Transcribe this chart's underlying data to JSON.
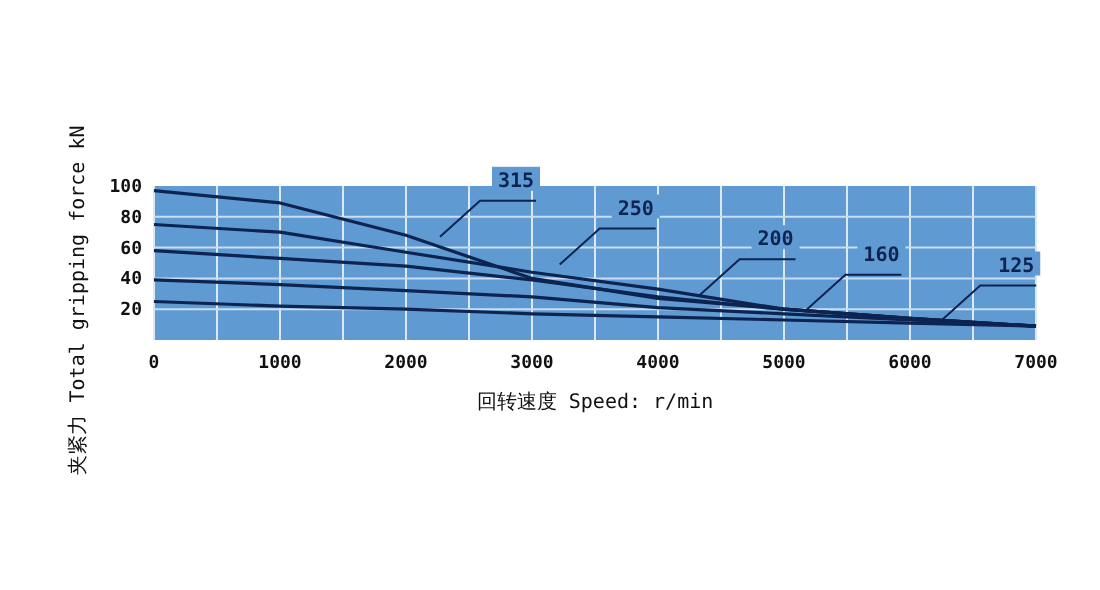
{
  "chart_data": {
    "type": "line",
    "xlabel": "回转速度    Speed: r/min",
    "ylabel": "夹紧力 Total gripping force kN",
    "xlim": [
      0,
      7000
    ],
    "ylim": [
      0,
      100
    ],
    "xticks": [
      0,
      {
        "value": 500,
        "label": null
      },
      1000,
      {
        "value": 1500,
        "label": null
      },
      2000,
      {
        "value": 2500,
        "label": null
      },
      3000,
      {
        "value": 3500,
        "label": null
      },
      4000,
      {
        "value": 4500,
        "label": null
      },
      5000,
      {
        "value": 5500,
        "label": null
      },
      6000,
      {
        "value": 6500,
        "label": null
      },
      7000
    ],
    "yticks": [
      {
        "value": 0,
        "label": null
      },
      20,
      40,
      60,
      80,
      100
    ],
    "grid": true,
    "marker": "none",
    "line_style": "solid",
    "x": [
      0,
      1000,
      2000,
      3000,
      4000,
      5000,
      6000,
      7000
    ],
    "series": [
      {
        "color": "#0d2350",
        "values": [
          97,
          89,
          68,
          40,
          27,
          20,
          14,
          9
        ]
      },
      {
        "color": "#0d2350",
        "values": [
          75,
          70,
          57,
          44,
          33,
          20,
          14,
          9
        ]
      },
      {
        "color": "#0d2350",
        "values": [
          58,
          53,
          48,
          39,
          28,
          20,
          14,
          9
        ]
      },
      {
        "color": "#0d2350",
        "values": [
          39,
          36,
          32,
          28,
          21,
          17,
          13,
          9
        ]
      },
      {
        "color": "#0d2350",
        "values": [
          25,
          22,
          20,
          17,
          15,
          13,
          11,
          9
        ]
      }
    ],
    "annotations": [
      {
        "text": "315",
        "x": 2270,
        "y": 67
      },
      {
        "text": "250",
        "x": 3220,
        "y": 49
      },
      {
        "text": "200",
        "x": 4330,
        "y": 29
      },
      {
        "text": "160",
        "x": 5170,
        "y": 19
      },
      {
        "text": "125",
        "x": 6240,
        "y": 12
      }
    ]
  }
}
